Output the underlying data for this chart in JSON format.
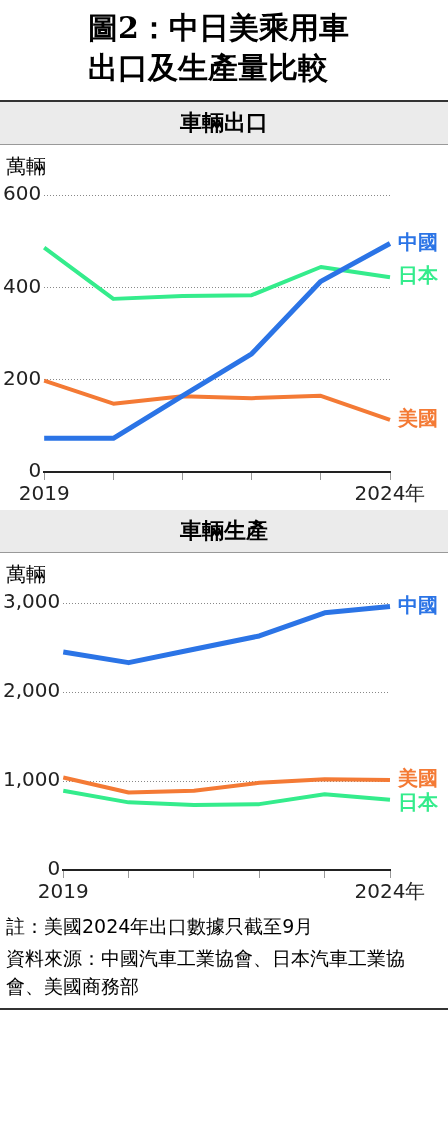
{
  "chart_data": [
    {
      "type": "line",
      "title": "圖2：中日美乘用車出口及生產量比較",
      "subtitle": "車輛出口",
      "ylabel": "萬輛",
      "categories": [
        "2019",
        null,
        null,
        null,
        null,
        "2024年"
      ],
      "series": [
        {
          "name": "中國",
          "color": "#2b74e6",
          "values": [
            73,
            73,
            165,
            256,
            413,
            495
          ]
        },
        {
          "name": "日本",
          "color": "#34ec8c",
          "values": [
            486,
            375,
            381,
            383,
            444,
            422
          ]
        },
        {
          "name": "美國",
          "color": "#f47a35",
          "values": [
            198,
            148,
            164,
            160,
            165,
            113
          ]
        }
      ],
      "ylim": [
        0,
        600
      ],
      "yticks": [
        0,
        200,
        400,
        600
      ],
      "grid": "y"
    },
    {
      "type": "line",
      "subtitle": "車輛生產",
      "ylabel": "萬輛",
      "categories": [
        "2019",
        null,
        null,
        null,
        null,
        "2024年"
      ],
      "series": [
        {
          "name": "中國",
          "color": "#2b74e6",
          "values": [
            2450,
            2330,
            2480,
            2630,
            2890,
            2960
          ]
        },
        {
          "name": "美國",
          "color": "#f47a35",
          "values": [
            1040,
            870,
            890,
            980,
            1020,
            1010
          ]
        },
        {
          "name": "日本",
          "color": "#34ec8c",
          "values": [
            890,
            760,
            730,
            740,
            850,
            790
          ]
        }
      ],
      "ylim": [
        0,
        3000
      ],
      "yticks": [
        0,
        {
          "value": 1000,
          "label": "1,000"
        },
        {
          "value": 2000,
          "label": "2,000"
        },
        {
          "value": 3000,
          "label": "3,000"
        }
      ],
      "grid": "y",
      "annotations": [
        "註：美國2024年出口數據只截至9月",
        "資料來源：中國汽車工業協會、日本汽車工業協會、美國商務部"
      ]
    }
  ]
}
